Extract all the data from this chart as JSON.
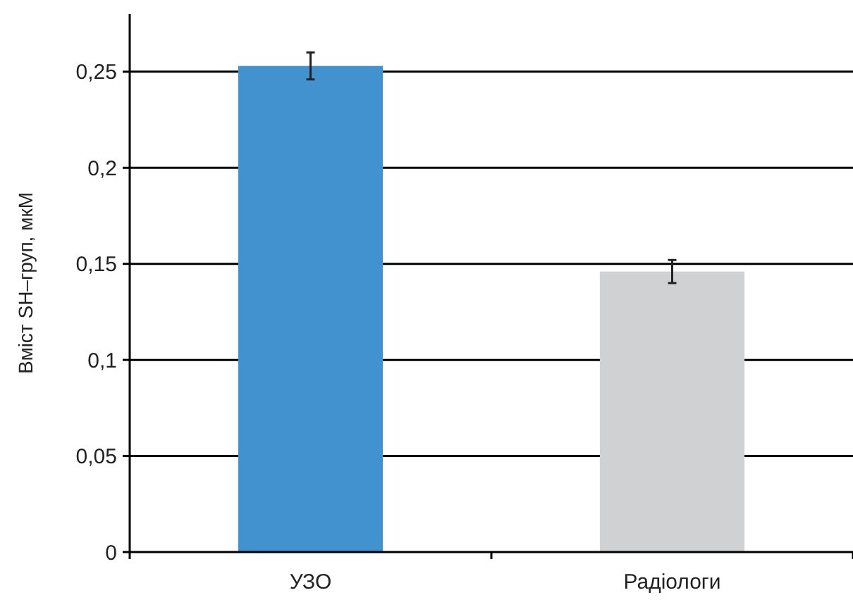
{
  "chart_data": {
    "type": "bar",
    "ylabel": "Вміст SH–груп, мкМ",
    "categories": [
      "УЗО",
      "Радіологи"
    ],
    "values": [
      0.253,
      0.146
    ],
    "colors": [
      "#4292d0",
      "#d0d1d3"
    ],
    "errors": [
      0.007,
      0.006
    ],
    "ylim": [
      0,
      0.28
    ],
    "yticks": [
      {
        "value": 0,
        "label": "0"
      },
      {
        "value": 0.05,
        "label": "0,05"
      },
      {
        "value": 0.1,
        "label": "0,1"
      },
      {
        "value": 0.15,
        "label": "0,15"
      },
      {
        "value": 0.2,
        "label": "0,2"
      },
      {
        "value": 0.25,
        "label": "0,25"
      }
    ],
    "grid": "y"
  }
}
